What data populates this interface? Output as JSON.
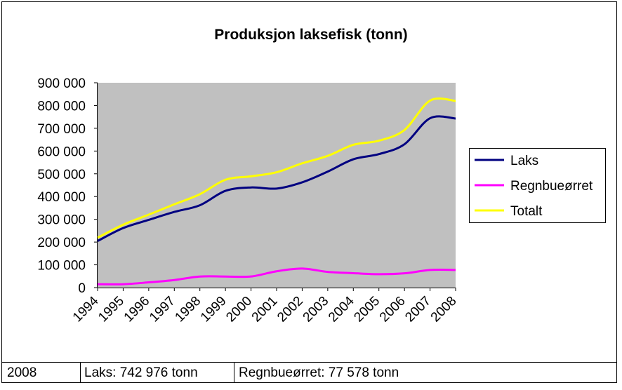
{
  "chart_data": {
    "type": "line",
    "title": "Produksjon laksefisk (tonn)",
    "categories": [
      "1994",
      "1995",
      "1996",
      "1997",
      "1998",
      "1999",
      "2000",
      "2001",
      "2002",
      "2003",
      "2004",
      "2005",
      "2006",
      "2007",
      "2008"
    ],
    "series": [
      {
        "name": "Laks",
        "color": "#000080",
        "values": [
          204686,
          261522,
          297557,
          332581,
          361879,
          425154,
          440061,
          435119,
          462495,
          509881,
          563915,
          586512,
          629888,
          744222,
          742976
        ]
      },
      {
        "name": "Regnbueørret",
        "color": "#ff00ff",
        "values": [
          14613,
          14825,
          22966,
          33295,
          48431,
          48692,
          48778,
          71764,
          83559,
          68931,
          63369,
          58875,
          62702,
          77381,
          77578
        ]
      },
      {
        "name": "Totalt",
        "color": "#ffff00",
        "values": [
          219299,
          276347,
          320523,
          365876,
          410310,
          473846,
          488839,
          506883,
          546054,
          578812,
          627284,
          645387,
          692590,
          821603,
          820554
        ]
      }
    ],
    "ylim": [
      0,
      900000
    ],
    "yticks": [
      0,
      {
        "value": 100000,
        "label": "100 000"
      },
      {
        "value": 200000,
        "label": "200 000"
      },
      {
        "value": 300000,
        "label": "300 000"
      },
      {
        "value": 400000,
        "label": "400 000"
      },
      {
        "value": 500000,
        "label": "500 000"
      },
      {
        "value": 600000,
        "label": "600 000"
      },
      {
        "value": 700000,
        "label": "700 000"
      },
      {
        "value": 800000,
        "label": "800 000"
      },
      {
        "value": 900000,
        "label": "900 000"
      }
    ],
    "legend": "right"
  },
  "footer": {
    "cells": [
      "2008",
      "Laks: 742 976 tonn",
      "Regnbueørret: 77 578 tonn"
    ]
  }
}
